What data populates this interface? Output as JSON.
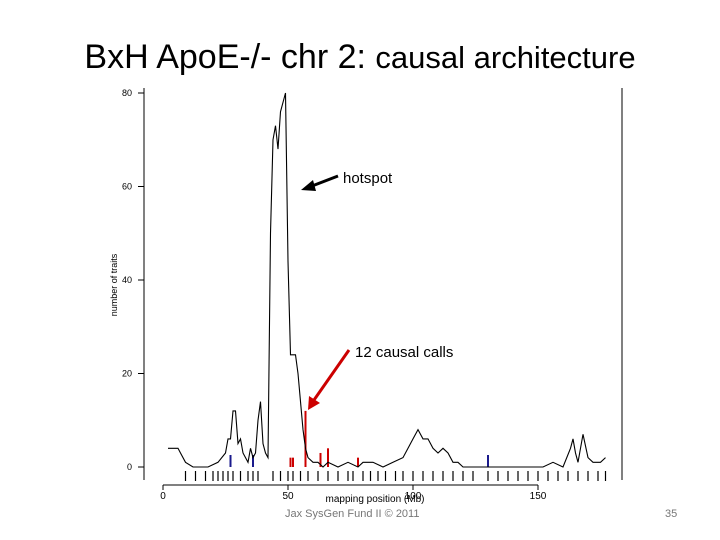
{
  "slide": {
    "title_main": "BxH ApoE-/- chr 2:",
    "title_sub": "causal architecture",
    "footer": "Jax SysGen Fund II © 2011",
    "page_number": "35"
  },
  "annotations": {
    "hotspot": "hotspot",
    "causal_calls": "12 causal calls"
  },
  "colors": {
    "trace": "#000000",
    "causal": "#cc0000",
    "marker": "#1a1a8c",
    "arrow_red": "#cc0000"
  },
  "chart_data": {
    "type": "line",
    "title": "",
    "xlabel": "mapping position (Mb)",
    "ylabel": "number of traits",
    "xlim": [
      -5,
      180
    ],
    "ylim": [
      0,
      80
    ],
    "x_ticks": [
      0,
      50,
      100,
      150
    ],
    "y_ticks": [
      0,
      20,
      40,
      60,
      80
    ],
    "grid": false,
    "series": [
      {
        "x": [
          2,
          6,
          7,
          9,
          12,
          15,
          18,
          22,
          25,
          26,
          27,
          28,
          29,
          30,
          31,
          32,
          33,
          34,
          35,
          36,
          37,
          38,
          39,
          40,
          41,
          42,
          43,
          44,
          45,
          46,
          47,
          48,
          49,
          50,
          51,
          52,
          53,
          54,
          55,
          56,
          57,
          58,
          60,
          62,
          64,
          66,
          70,
          74,
          78,
          80,
          82,
          84,
          88,
          92,
          96,
          98,
          100,
          102,
          104,
          106,
          108,
          110,
          112,
          114,
          116,
          118,
          120,
          124,
          128,
          132,
          136,
          140,
          144,
          148,
          152,
          156,
          160,
          163,
          164,
          165,
          166,
          167,
          168,
          170,
          172,
          175,
          177
        ],
        "y": [
          4,
          4,
          3,
          1,
          0,
          0,
          0,
          1,
          3,
          6,
          6,
          12,
          12,
          5,
          6,
          3,
          2,
          1,
          4,
          2,
          3,
          10,
          14,
          5,
          3,
          2,
          50,
          70,
          73,
          68,
          76,
          78,
          80,
          44,
          24,
          24,
          24,
          20,
          14,
          8,
          4,
          2,
          1,
          1,
          0,
          1,
          0,
          1,
          0,
          1,
          1,
          1,
          0,
          1,
          2,
          4,
          6,
          8,
          6,
          6,
          4,
          3,
          4,
          3,
          1,
          1,
          0,
          0,
          0,
          0,
          0,
          0,
          0,
          0,
          0,
          1,
          0,
          4,
          6,
          3,
          1,
          4,
          7,
          2,
          1,
          1,
          2
        ]
      }
    ],
    "causal_calls": [
      {
        "x": 51,
        "y": 2
      },
      {
        "x": 52,
        "y": 2
      },
      {
        "x": 57,
        "y": 12
      },
      {
        "x": 63,
        "y": 3
      },
      {
        "x": 66,
        "y": 4
      },
      {
        "x": 78,
        "y": 2
      }
    ],
    "genotype_markers": [
      9,
      13,
      17,
      20,
      22,
      24,
      26,
      28,
      31,
      34,
      36,
      38,
      44,
      47,
      50,
      52,
      55,
      58,
      62,
      66,
      70,
      74,
      76,
      80,
      83,
      86,
      89,
      93,
      96,
      100,
      104,
      108,
      112,
      116,
      120,
      124,
      130,
      134,
      138,
      142,
      146,
      150,
      154,
      158,
      162,
      166,
      170,
      174,
      177
    ]
  }
}
